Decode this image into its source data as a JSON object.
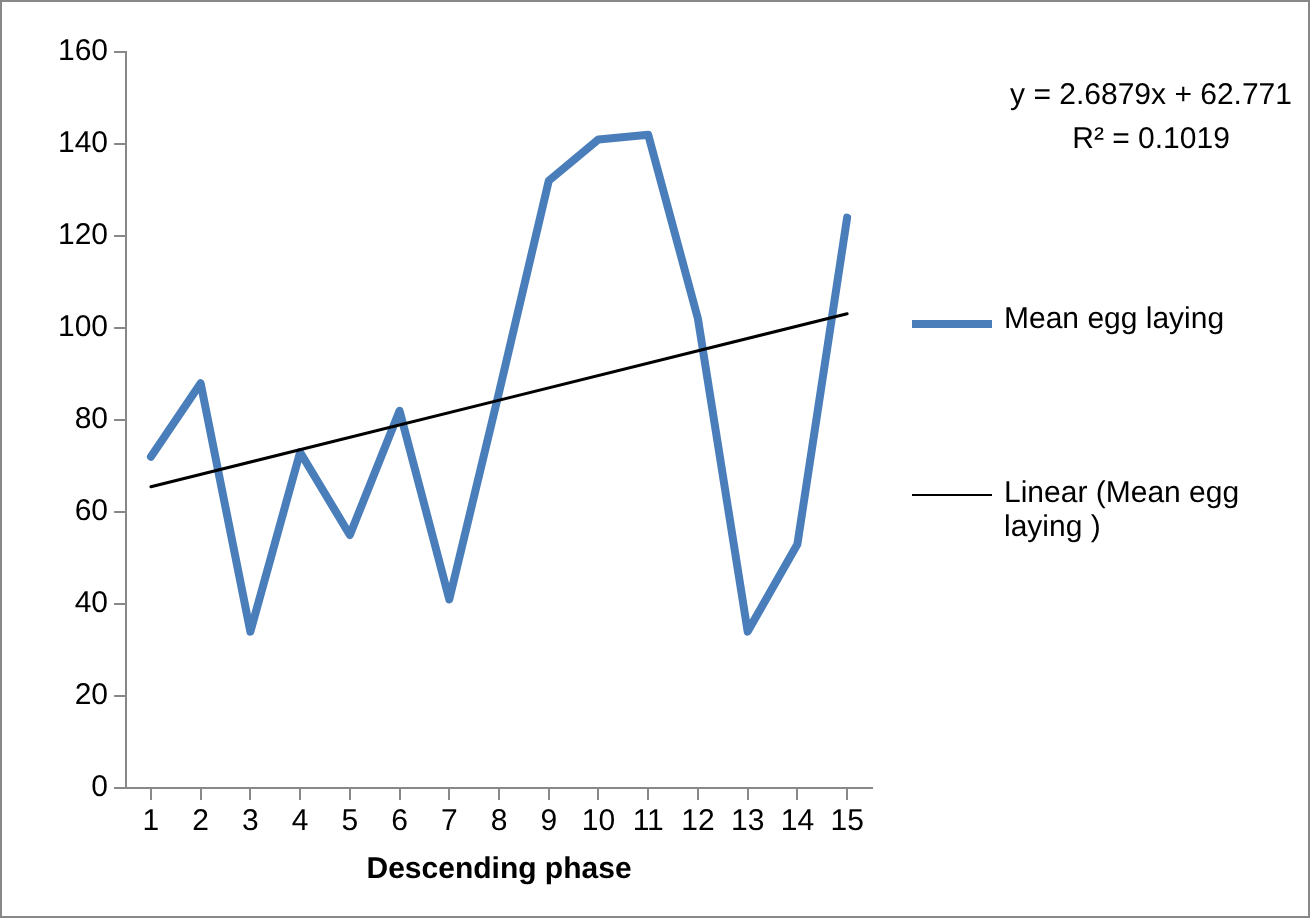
{
  "chart_data": {
    "type": "line",
    "xlabel": "Descending phase",
    "x": [
      1,
      2,
      3,
      4,
      5,
      6,
      7,
      8,
      9,
      10,
      11,
      12,
      13,
      14,
      15
    ],
    "series": [
      {
        "name": "Mean egg laying",
        "color": "#4a7ebb",
        "values": [
          72,
          88,
          34,
          73,
          55,
          82,
          41,
          86,
          132,
          141,
          142,
          102,
          34,
          53,
          124
        ]
      },
      {
        "name": "Linear (Mean egg laying )",
        "type": "line",
        "color": "#000000",
        "x": [
          1,
          15
        ],
        "values": [
          65.5,
          103.1
        ]
      }
    ],
    "xlim": [
      0.5,
      15.5
    ],
    "xticks": [
      1,
      2,
      3,
      4,
      5,
      6,
      7,
      8,
      9,
      10,
      11,
      12,
      13,
      14,
      15
    ],
    "ylim": [
      0,
      160
    ],
    "yticks": [
      0,
      20,
      40,
      60,
      80,
      100,
      120,
      140,
      160
    ],
    "grid": false,
    "legend": "right",
    "marker": "none",
    "annotations": [
      "y = 2.6879x + 62.771",
      "R² = 0.1019"
    ]
  }
}
